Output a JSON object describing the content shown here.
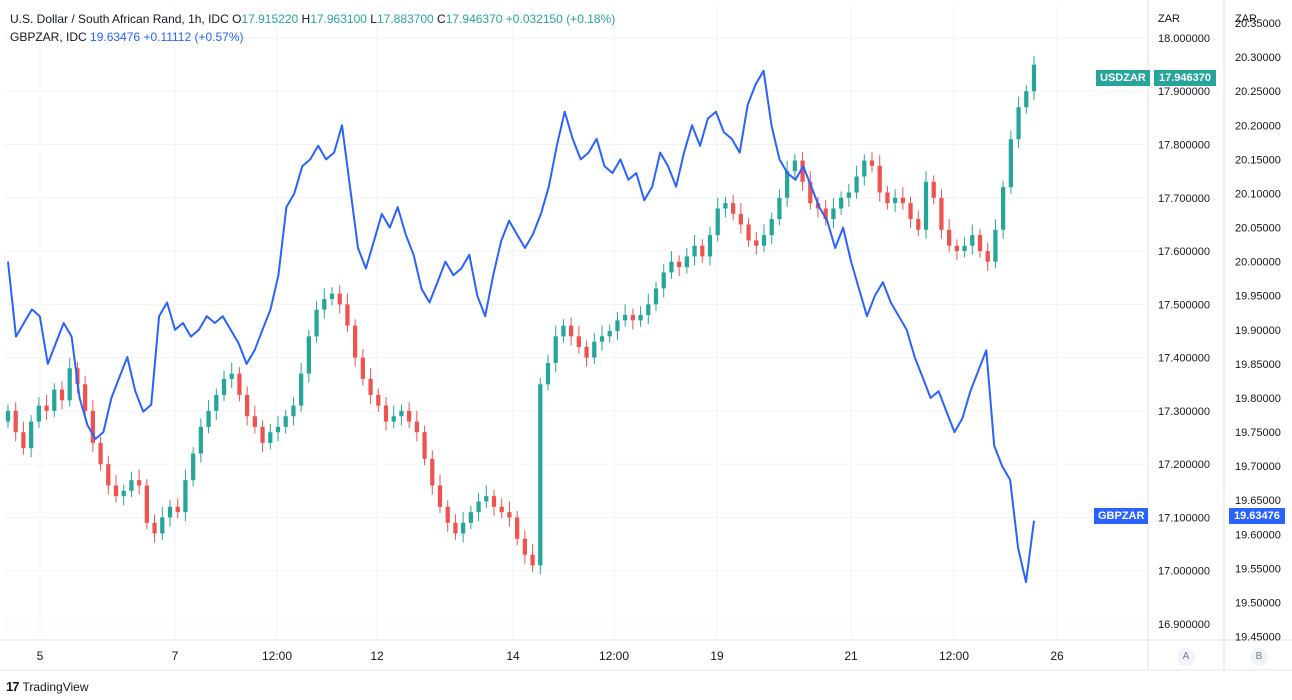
{
  "legend": {
    "main": {
      "name": "U.S. Dollar / South African Rand, 1h, IDC",
      "o_label": "O",
      "o": "17.915220",
      "h_label": "H",
      "h": "17.963100",
      "l_label": "L",
      "l": "17.883700",
      "c_label": "C",
      "c": "17.946370",
      "change": "+0.032150 (+0.18%)"
    },
    "compare": {
      "name": "GBPZAR, IDC",
      "value": "19.63476",
      "change": "+0.11112 (+0.57%)"
    }
  },
  "axis_a": {
    "unit": "ZAR",
    "button": "A",
    "ticks": [
      "18.000000",
      "17.900000",
      "17.800000",
      "17.700000",
      "17.600000",
      "17.500000",
      "17.400000",
      "17.300000",
      "17.200000",
      "17.100000",
      "17.000000",
      "16.900000"
    ]
  },
  "axis_b": {
    "unit": "ZAR",
    "button": "B",
    "ticks": [
      "20.35000",
      "20.30000",
      "20.25000",
      "20.20000",
      "20.15000",
      "20.10000",
      "20.05000",
      "20.00000",
      "19.95000",
      "19.90000",
      "19.85000",
      "19.80000",
      "19.75000",
      "19.70000",
      "19.65000",
      "19.60000",
      "19.55000",
      "19.50000",
      "19.45000"
    ]
  },
  "badges": {
    "usdzar": {
      "label": "USDZAR",
      "value": "17.946370",
      "color": "#26a69a"
    },
    "gbpzar": {
      "label": "GBPZAR",
      "value": "19.63476",
      "color": "#2962ff"
    }
  },
  "brand": {
    "logo": "17",
    "name": "TradingView"
  },
  "chart_data": {
    "type": "line",
    "title": "U.S. Dollar / South African Rand, 1h, IDC",
    "x_ticks": [
      "5",
      "7",
      "12:00",
      "12",
      "14",
      "12:00",
      "19",
      "21",
      "12:00",
      "26"
    ],
    "colors": {
      "up": "#26a69a",
      "down": "#ef5350",
      "compare": "#2962ff"
    },
    "grid": true,
    "series": [
      {
        "name": "USDZAR",
        "kind": "candlestick",
        "axis": "A",
        "ylim": [
          16.87,
          18.06
        ],
        "close": [
          17.3,
          17.26,
          17.23,
          17.28,
          17.31,
          17.3,
          17.34,
          17.32,
          17.38,
          17.35,
          17.3,
          17.24,
          17.2,
          17.16,
          17.14,
          17.15,
          17.17,
          17.16,
          17.09,
          17.07,
          17.1,
          17.12,
          17.11,
          17.17,
          17.22,
          17.27,
          17.3,
          17.33,
          17.36,
          17.37,
          17.33,
          17.29,
          17.27,
          17.24,
          17.26,
          17.27,
          17.29,
          17.31,
          17.37,
          17.44,
          17.49,
          17.51,
          17.52,
          17.5,
          17.46,
          17.4,
          17.36,
          17.33,
          17.31,
          17.28,
          17.29,
          17.3,
          17.28,
          17.26,
          17.21,
          17.16,
          17.12,
          17.09,
          17.07,
          17.09,
          17.11,
          17.13,
          17.14,
          17.12,
          17.11,
          17.1,
          17.06,
          17.03,
          17.01,
          17.35,
          17.39,
          17.44,
          17.46,
          17.44,
          17.42,
          17.4,
          17.43,
          17.44,
          17.45,
          17.47,
          17.48,
          17.47,
          17.48,
          17.5,
          17.53,
          17.56,
          17.58,
          17.57,
          17.59,
          17.61,
          17.59,
          17.63,
          17.68,
          17.69,
          17.67,
          17.65,
          17.62,
          17.61,
          17.63,
          17.66,
          17.7,
          17.75,
          17.77,
          17.73,
          17.69,
          17.68,
          17.66,
          17.68,
          17.7,
          17.71,
          17.74,
          17.77,
          17.76,
          17.71,
          17.69,
          17.7,
          17.69,
          17.66,
          17.64,
          17.73,
          17.7,
          17.64,
          17.61,
          17.6,
          17.61,
          17.63,
          17.6,
          17.58,
          17.64,
          17.72,
          17.81,
          17.87,
          17.9,
          17.95
        ]
      },
      {
        "name": "GBPZAR",
        "kind": "line",
        "axis": "B",
        "ylim": [
          19.445,
          20.375
        ],
        "values": [
          20.0,
          19.89,
          19.91,
          19.93,
          19.92,
          19.85,
          19.88,
          19.91,
          19.89,
          19.8,
          19.76,
          19.74,
          19.75,
          19.8,
          19.83,
          19.86,
          19.81,
          19.78,
          19.79,
          19.92,
          19.94,
          19.9,
          19.91,
          19.89,
          19.9,
          19.92,
          19.91,
          19.92,
          19.9,
          19.88,
          19.85,
          19.87,
          19.9,
          19.93,
          19.98,
          20.08,
          20.1,
          20.14,
          20.15,
          20.17,
          20.15,
          20.16,
          20.2,
          20.11,
          20.02,
          19.99,
          20.03,
          20.07,
          20.05,
          20.08,
          20.04,
          20.01,
          19.96,
          19.94,
          19.97,
          20.0,
          19.98,
          19.99,
          20.01,
          19.95,
          19.92,
          19.98,
          20.03,
          20.06,
          20.04,
          20.02,
          20.04,
          20.07,
          20.11,
          20.17,
          20.22,
          20.18,
          20.15,
          20.16,
          20.18,
          20.14,
          20.13,
          20.15,
          20.12,
          20.13,
          20.09,
          20.11,
          20.16,
          20.14,
          20.11,
          20.16,
          20.2,
          20.17,
          20.21,
          20.22,
          20.19,
          20.18,
          20.16,
          20.23,
          20.26,
          20.28,
          20.2,
          20.15,
          20.13,
          20.12,
          20.14,
          20.11,
          20.08,
          20.06,
          20.02,
          20.05,
          20.0,
          19.96,
          19.92,
          19.95,
          19.97,
          19.94,
          19.92,
          19.9,
          19.86,
          19.83,
          19.8,
          19.81,
          19.78,
          19.75,
          19.77,
          19.81,
          19.84,
          19.87,
          19.73,
          19.7,
          19.68,
          19.58,
          19.53,
          19.62
        ]
      }
    ]
  }
}
